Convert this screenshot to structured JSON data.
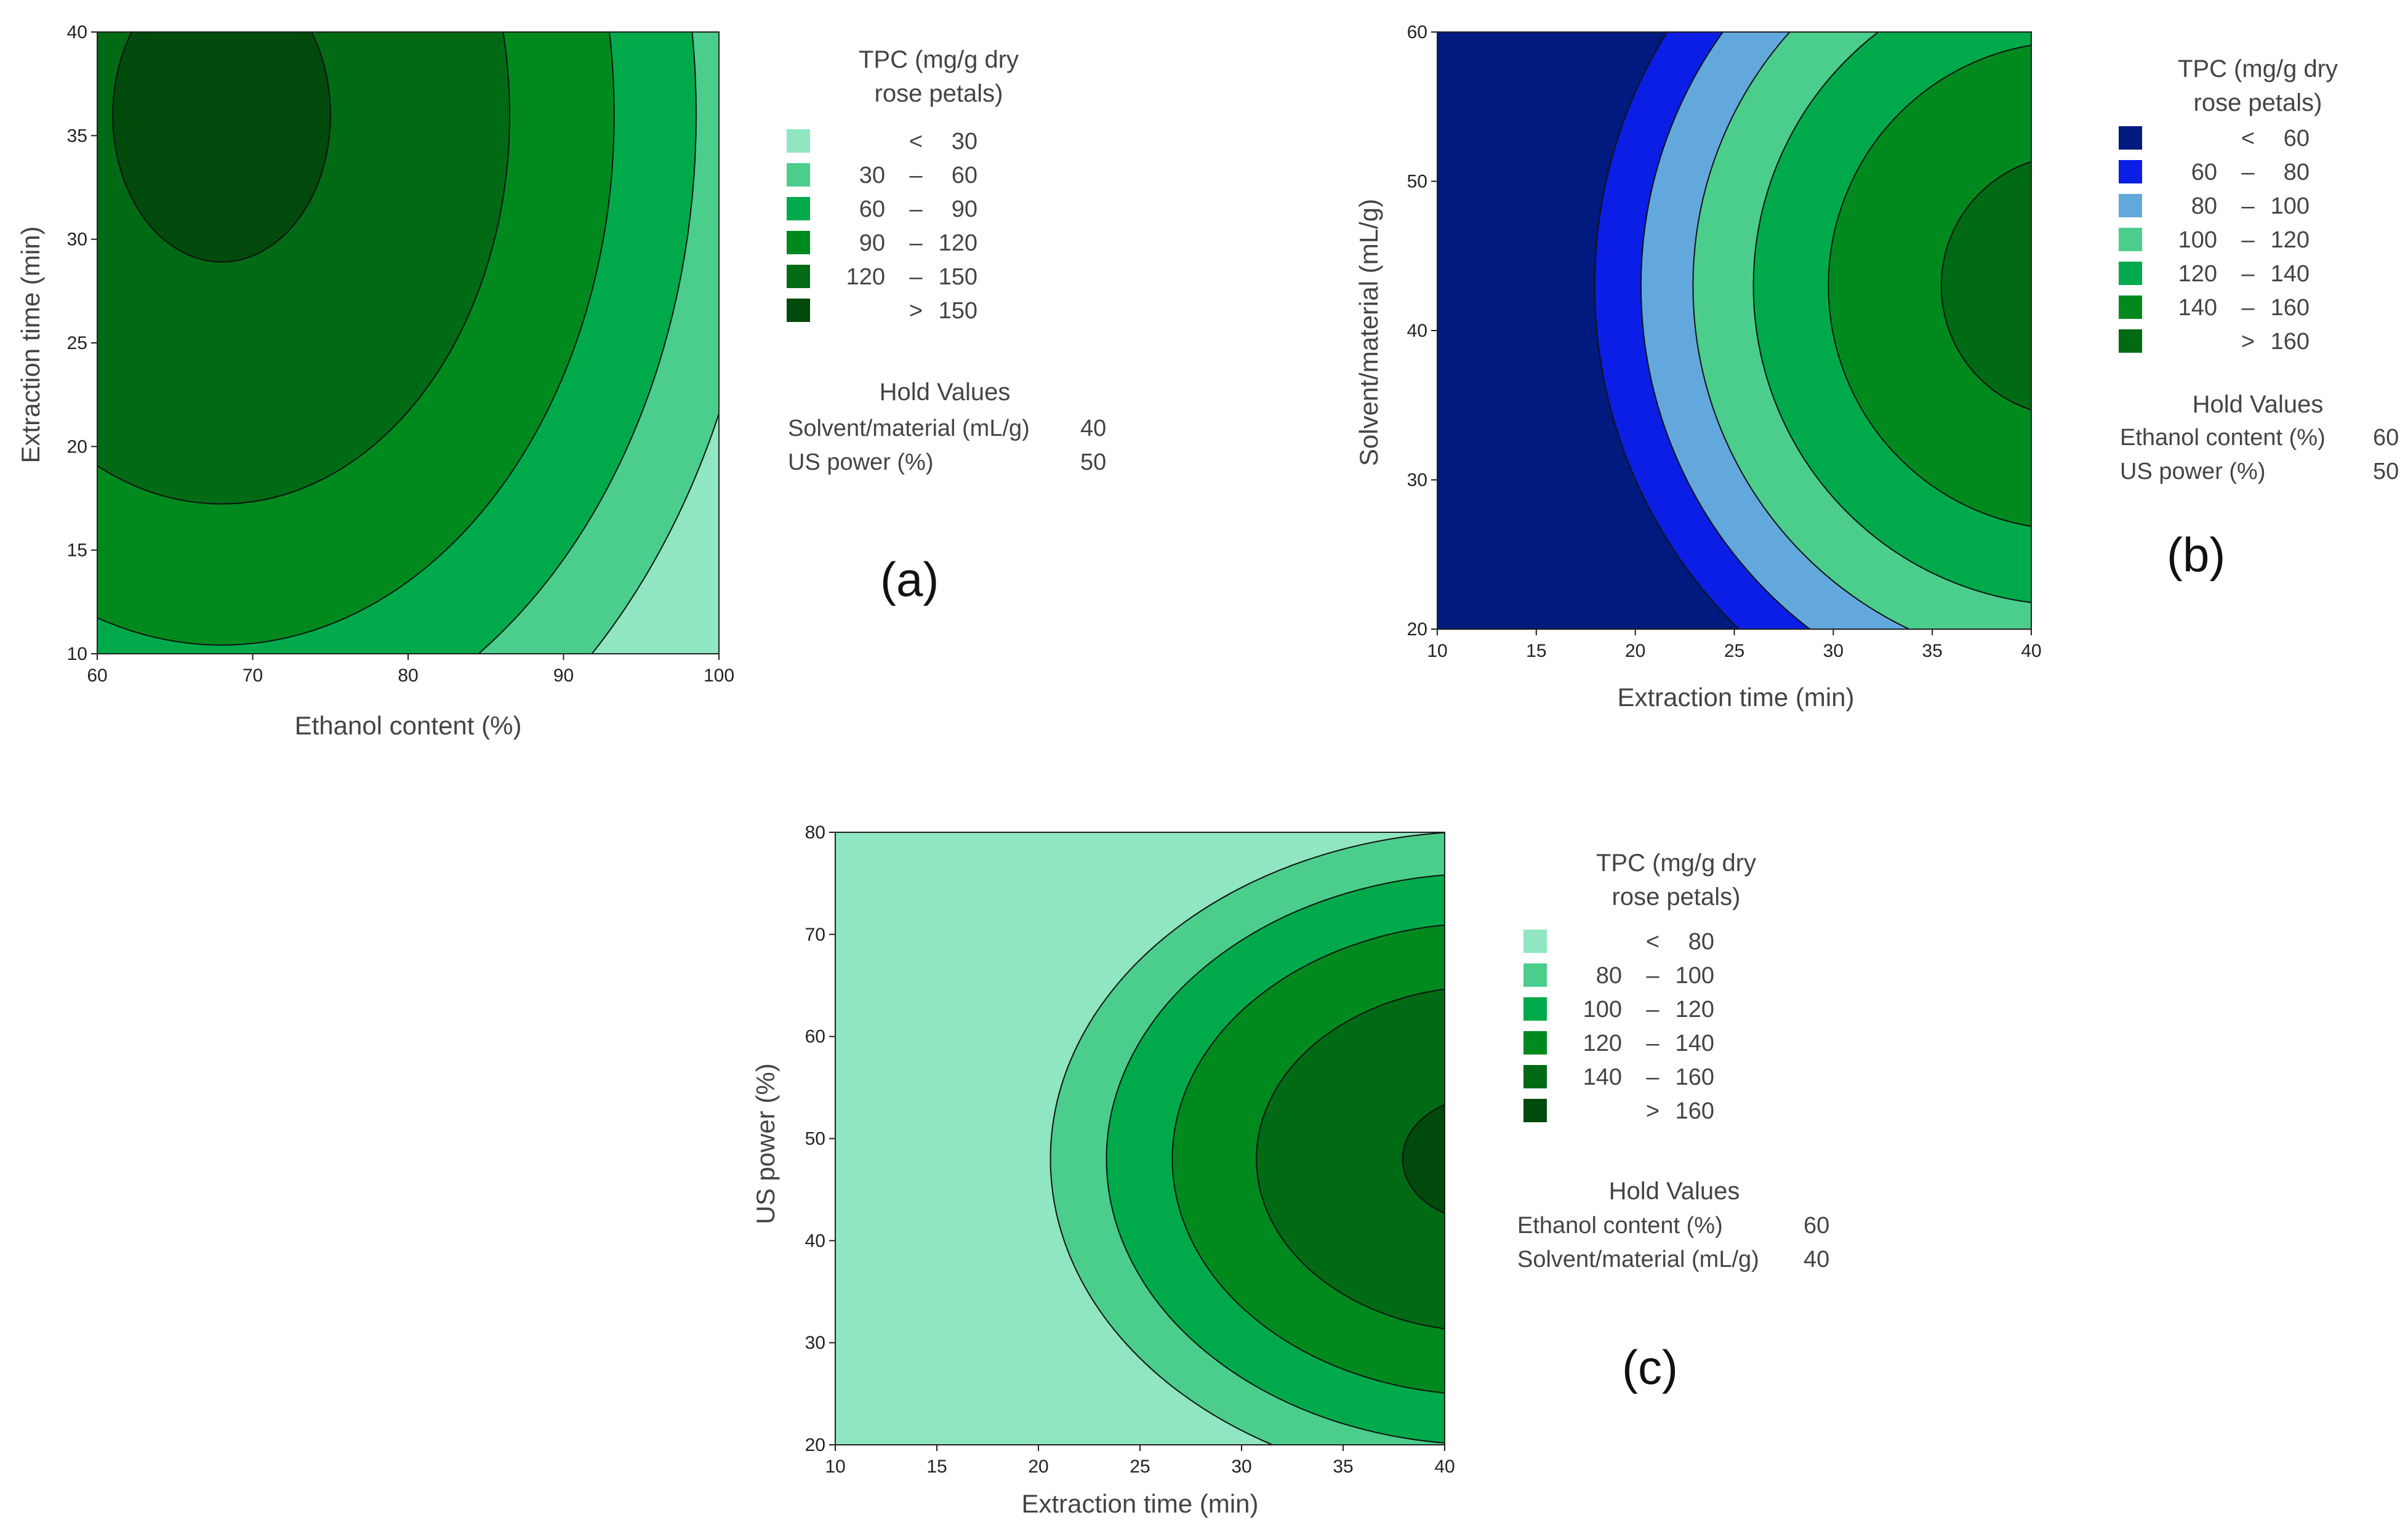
{
  "chart_data": [
    {
      "type": "contour",
      "panel_label": "(a)",
      "title": "",
      "xlabel": "Ethanol content (%)",
      "ylabel": "Extraction time (min)",
      "xlim": [
        60,
        100
      ],
      "ylim": [
        10,
        40
      ],
      "xticks": [
        "60",
        "70",
        "80",
        "90",
        "100"
      ],
      "yticks": [
        "10",
        "15",
        "20",
        "25",
        "30",
        "35",
        "40"
      ],
      "legend": {
        "title_line1": "TPC (mg/g dry",
        "title_line2": "rose petals)",
        "entries": [
          {
            "op": "<",
            "lo": "",
            "dash": "",
            "hi": "30",
            "color": "#8fe6c0"
          },
          {
            "op": "",
            "lo": "30",
            "dash": "–",
            "hi": "60",
            "color": "#4bce8c"
          },
          {
            "op": "",
            "lo": "60",
            "dash": "–",
            "hi": "90",
            "color": "#00aa4a"
          },
          {
            "op": "",
            "lo": "90",
            "dash": "–",
            "hi": "120",
            "color": "#008a1e"
          },
          {
            "op": "",
            "lo": "120",
            "dash": "–",
            "hi": "150",
            "color": "#006a14"
          },
          {
            "op": ">",
            "lo": "",
            "dash": "",
            "hi": "150",
            "color": "#004a0c"
          }
        ]
      },
      "hold_values": {
        "title": "Hold Values",
        "items": [
          {
            "label": "Solvent/material (mL/g)",
            "value": "40"
          },
          {
            "label": "US power (%)",
            "value": "50"
          }
        ]
      },
      "model": {
        "type": "ellipse",
        "vmax": 155,
        "x0": 68,
        "y0": 36,
        "ax": 39,
        "ay": 39.5
      },
      "levels": [
        30,
        60,
        90,
        120,
        150
      ]
    },
    {
      "type": "contour",
      "panel_label": "(b)",
      "title": "",
      "xlabel": "Extraction time (min)",
      "ylabel": "Solvent/material (mL/g)",
      "xlim": [
        10,
        40
      ],
      "ylim": [
        20,
        60
      ],
      "xticks": [
        "10",
        "15",
        "20",
        "25",
        "30",
        "35",
        "40"
      ],
      "yticks": [
        "20",
        "30",
        "40",
        "50",
        "60"
      ],
      "legend": {
        "title_line1": "TPC (mg/g dry",
        "title_line2": "rose petals)",
        "entries": [
          {
            "op": "<",
            "lo": "",
            "dash": "",
            "hi": "60",
            "color": "#001a80"
          },
          {
            "op": "",
            "lo": "60",
            "dash": "–",
            "hi": "80",
            "color": "#0a1ee6"
          },
          {
            "op": "",
            "lo": "80",
            "dash": "–",
            "hi": "100",
            "color": "#62a8dc"
          },
          {
            "op": "",
            "lo": "100",
            "dash": "–",
            "hi": "120",
            "color": "#4bce8c"
          },
          {
            "op": "",
            "lo": "120",
            "dash": "–",
            "hi": "140",
            "color": "#00aa4a"
          },
          {
            "op": "",
            "lo": "140",
            "dash": "–",
            "hi": "160",
            "color": "#008a1e"
          },
          {
            "op": ">",
            "lo": "",
            "dash": "",
            "hi": "160",
            "color": "#006a14"
          }
        ]
      },
      "hold_values": {
        "title": "Hold Values",
        "items": [
          {
            "label": "Ethanol content (%)",
            "value": "60"
          },
          {
            "label": "US power (%)",
            "value": "50"
          }
        ]
      },
      "model": {
        "type": "ellipse",
        "vmax": 168,
        "x0": 42,
        "y0": 43,
        "ax": 30,
        "ay": 40
      },
      "levels": [
        60,
        80,
        100,
        120,
        140,
        160
      ]
    },
    {
      "type": "contour",
      "panel_label": "(c)",
      "title": "",
      "xlabel": "Extraction time (min)",
      "ylabel": "US power (%)",
      "xlim": [
        10,
        40
      ],
      "ylim": [
        20,
        80
      ],
      "xticks": [
        "10",
        "15",
        "20",
        "25",
        "30",
        "35",
        "40"
      ],
      "yticks": [
        "20",
        "30",
        "40",
        "50",
        "60",
        "70",
        "80"
      ],
      "legend": {
        "title_line1": "TPC (mg/g dry",
        "title_line2": "rose petals)",
        "entries": [
          {
            "op": "<",
            "lo": "",
            "dash": "",
            "hi": "80",
            "color": "#8fe6c0"
          },
          {
            "op": "",
            "lo": "80",
            "dash": "–",
            "hi": "100",
            "color": "#4bce8c"
          },
          {
            "op": "",
            "lo": "100",
            "dash": "–",
            "hi": "120",
            "color": "#00aa4a"
          },
          {
            "op": "",
            "lo": "120",
            "dash": "–",
            "hi": "140",
            "color": "#008a1e"
          },
          {
            "op": "",
            "lo": "140",
            "dash": "–",
            "hi": "160",
            "color": "#006a14"
          },
          {
            "op": ">",
            "lo": "",
            "dash": "",
            "hi": "160",
            "color": "#004a0c"
          }
        ]
      },
      "hold_values": {
        "title": "Hold Values",
        "items": [
          {
            "label": "Ethanol content (%)",
            "value": "60"
          },
          {
            "label": "Solvent/material (mL/g)",
            "value": "40"
          }
        ]
      },
      "model": {
        "type": "ellipse",
        "vmax": 163,
        "x0": 42,
        "y0": 48,
        "ax": 30,
        "ay": 45
      },
      "levels": [
        80,
        100,
        120,
        140,
        160
      ]
    }
  ]
}
